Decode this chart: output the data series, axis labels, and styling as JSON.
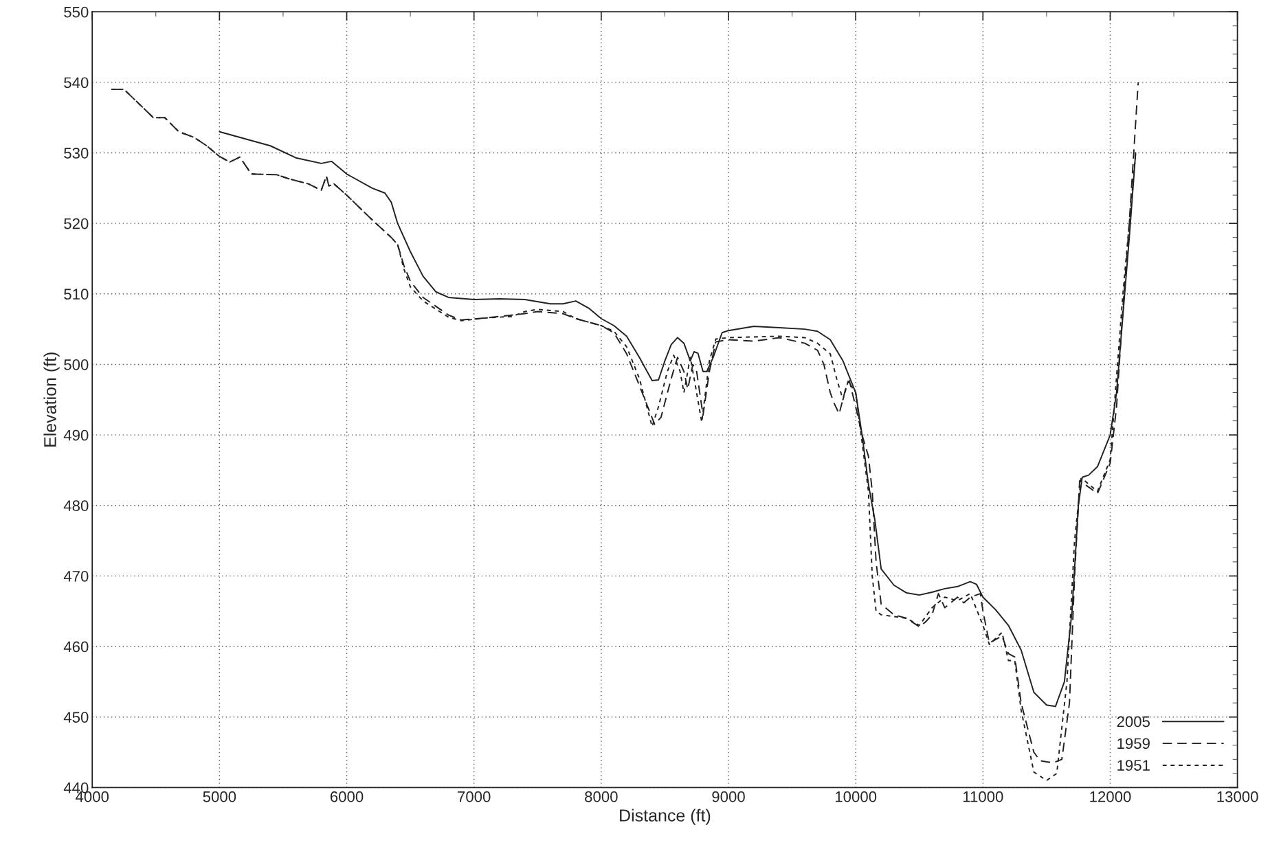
{
  "chart_data": {
    "type": "line",
    "xlabel": "Distance (ft)",
    "ylabel": "Elevation (ft)",
    "xlim": [
      4000,
      13000
    ],
    "xticks": [
      4000,
      5000,
      6000,
      7000,
      8000,
      9000,
      10000,
      11000,
      12000,
      13000
    ],
    "ylim": [
      440,
      550
    ],
    "yticks": [
      440,
      450,
      460,
      470,
      480,
      490,
      500,
      510,
      520,
      530,
      540,
      550
    ],
    "grid": true,
    "legend": "bottom right",
    "marker": "none",
    "series": [
      {
        "name": "2005",
        "color": "#222222",
        "line_style": "solid",
        "x": [
          5000,
          5400,
          5600,
          5800,
          5880,
          6000,
          6200,
          6300,
          6350,
          6400,
          6500,
          6600,
          6700,
          6800,
          7000,
          7200,
          7400,
          7600,
          7700,
          7800,
          7900,
          8000,
          8100,
          8200,
          8300,
          8400,
          8450,
          8500,
          8550,
          8600,
          8650,
          8700,
          8730,
          8760,
          8800,
          8830,
          8880,
          8950,
          9000,
          9200,
          9400,
          9600,
          9700,
          9800,
          9900,
          10000,
          10050,
          10100,
          10150,
          10200,
          10300,
          10400,
          10500,
          10600,
          10700,
          10800,
          10900,
          10950,
          11000,
          11100,
          11200,
          11300,
          11400,
          11500,
          11570,
          11640,
          11700,
          11750,
          11780,
          11830,
          11900,
          12000,
          12050,
          12100,
          12150,
          12200
        ],
        "values": [
          533,
          531,
          529.3,
          528.5,
          528.8,
          527,
          525,
          524.3,
          523,
          520,
          516,
          512.5,
          510.3,
          509.5,
          509.2,
          509.3,
          509.2,
          508.6,
          508.6,
          509,
          508,
          506.5,
          505.5,
          504,
          501,
          497.7,
          497.8,
          500.5,
          502.8,
          503.8,
          503,
          500.5,
          501.8,
          501.6,
          499,
          499,
          501,
          504.5,
          504.8,
          505.4,
          505.2,
          505,
          504.7,
          503.5,
          500.5,
          496,
          490,
          483,
          478,
          471,
          468.7,
          467.6,
          467.3,
          467.7,
          468.2,
          468.5,
          469.2,
          468.8,
          467,
          465.2,
          463,
          459.5,
          453.5,
          451.7,
          451.5,
          455,
          465,
          480,
          484,
          484.3,
          485.5,
          490,
          496,
          507,
          518,
          530
        ]
      },
      {
        "name": "1959",
        "color": "#222222",
        "line_style": "dashed",
        "x": [
          4150,
          4250,
          4480,
          4570,
          4680,
          4800,
          4900,
          5000,
          5080,
          5160,
          5250,
          5450,
          5550,
          5700,
          5800,
          5840,
          5860,
          5900,
          6000,
          6200,
          6350,
          6400,
          6450,
          6500,
          6600,
          6800,
          6900,
          7100,
          7400,
          7500,
          7700,
          7800,
          8000,
          8100,
          8200,
          8300,
          8420,
          8470,
          8550,
          8600,
          8650,
          8680,
          8720,
          8750,
          8800,
          8850,
          8900,
          9000,
          9200,
          9400,
          9600,
          9700,
          9750,
          9800,
          9830,
          9870,
          9920,
          9950,
          10000,
          10050,
          10100,
          10130,
          10160,
          10200,
          10300,
          10400,
          10500,
          10550,
          10600,
          10650,
          10700,
          10800,
          10850,
          10900,
          10980,
          11000,
          11050,
          11100,
          11150,
          11200,
          11250,
          11300,
          11400,
          11450,
          11550,
          11620,
          11680,
          11720,
          11760,
          11800,
          11900,
          12000,
          12050,
          12100,
          12150,
          12220
        ],
        "values": [
          539,
          539,
          535,
          535,
          533,
          532.2,
          531,
          529.5,
          528.7,
          529.4,
          527,
          526.9,
          526.3,
          525.6,
          524.7,
          526.7,
          525.3,
          525.6,
          524,
          520.5,
          518,
          517,
          514,
          511.8,
          509.5,
          507,
          506.3,
          506.6,
          507.2,
          507.5,
          507.2,
          506.5,
          505.5,
          504.5,
          501.5,
          497,
          491.5,
          492.5,
          498,
          501,
          499,
          496.5,
          500,
          499,
          492.8,
          499,
          503.2,
          503.5,
          503.3,
          503.8,
          503,
          502,
          500,
          496,
          494.5,
          493,
          496.5,
          497.7,
          494,
          490,
          487,
          482,
          472,
          466,
          464.5,
          464,
          462.8,
          463.5,
          464.5,
          467.5,
          465.5,
          467,
          466.2,
          467,
          467.5,
          465,
          460.5,
          461,
          461.5,
          459,
          458.5,
          452,
          445,
          443.8,
          443.5,
          444,
          452,
          470,
          483.5,
          483,
          481.7,
          486,
          494,
          508,
          520,
          540
        ]
      },
      {
        "name": "1951",
        "color": "#222222",
        "line_style": "dotted",
        "x": [
          4150,
          4250,
          4480,
          4570,
          4680,
          4800,
          4900,
          5000,
          5080,
          5160,
          5250,
          5450,
          5550,
          5700,
          5800,
          5840,
          5860,
          5900,
          6000,
          6200,
          6350,
          6400,
          6450,
          6500,
          6600,
          6800,
          6900,
          7100,
          7300,
          7400,
          7500,
          7700,
          7800,
          8000,
          8100,
          8200,
          8300,
          8400,
          8450,
          8520,
          8570,
          8620,
          8650,
          8700,
          8740,
          8790,
          8850,
          8900,
          9000,
          9400,
          9600,
          9700,
          9800,
          9850,
          9900,
          9940,
          10000,
          10100,
          10130,
          10160,
          10200,
          10400,
          10500,
          10600,
          10700,
          10800,
          10900,
          11000,
          11050,
          11150,
          11200,
          11250,
          11300,
          11400,
          11500,
          11580,
          11660,
          11720,
          11770,
          11800,
          11900,
          12000,
          12100,
          12150,
          12200
        ],
        "values": [
          539,
          539,
          535,
          535,
          533,
          532.2,
          531,
          529.5,
          528.7,
          529.4,
          527,
          526.9,
          526.3,
          525.6,
          524.7,
          526.7,
          525.3,
          525.6,
          524,
          520.5,
          518,
          517,
          513.5,
          511,
          509,
          506.7,
          506.2,
          506.6,
          506.8,
          507.5,
          507.8,
          507.5,
          506.5,
          505.5,
          504.7,
          502.5,
          498,
          491.2,
          494,
          499,
          501.3,
          499,
          496,
          501,
          497,
          491.8,
          500.5,
          503.6,
          503.8,
          504,
          503.8,
          503,
          501.5,
          498,
          495,
          497.6,
          496,
          482,
          470,
          465,
          464.5,
          464,
          463,
          465.5,
          467,
          466.5,
          467.5,
          463,
          460.3,
          462,
          458,
          458,
          451,
          442.2,
          441,
          442,
          455,
          475,
          483.8,
          483.5,
          482,
          486.5,
          510,
          520,
          530
        ]
      }
    ]
  }
}
